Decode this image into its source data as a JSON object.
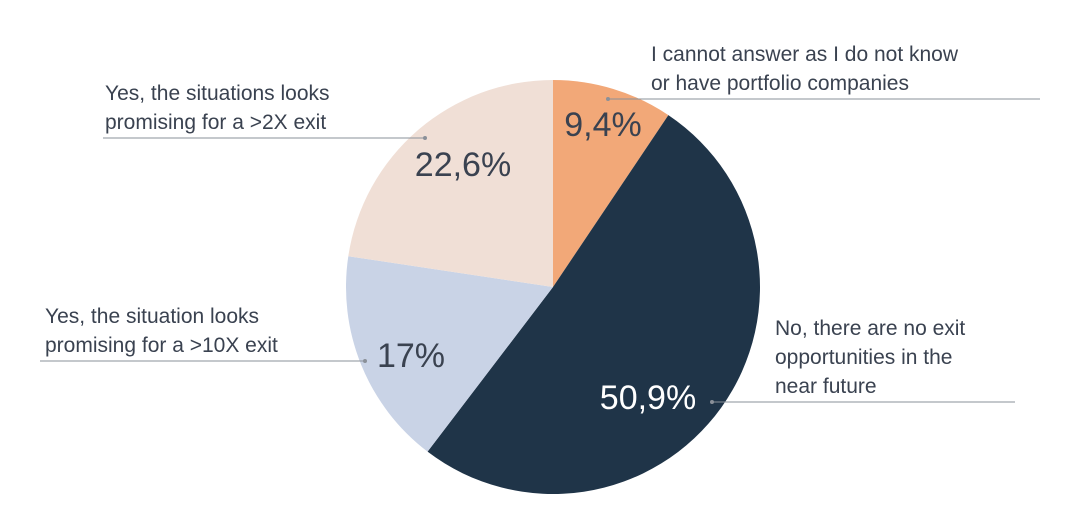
{
  "chart_data": {
    "type": "pie",
    "categories": [
      "I cannot answer as I do not know\nor have portfolio companies",
      "No, there are no exit\nopportunities in the\nnear future",
      "Yes, the situation looks\npromising for a >10X exit",
      "Yes, the situations looks\npromising for a >2X exit"
    ],
    "values": [
      9.4,
      50.9,
      17,
      22.6
    ],
    "value_labels": [
      "9,4%",
      "50,9%",
      "17%",
      "22,6%"
    ],
    "colors": [
      "#f2a878",
      "#1f3448",
      "#c9d3e6",
      "#f0dfd6"
    ]
  }
}
